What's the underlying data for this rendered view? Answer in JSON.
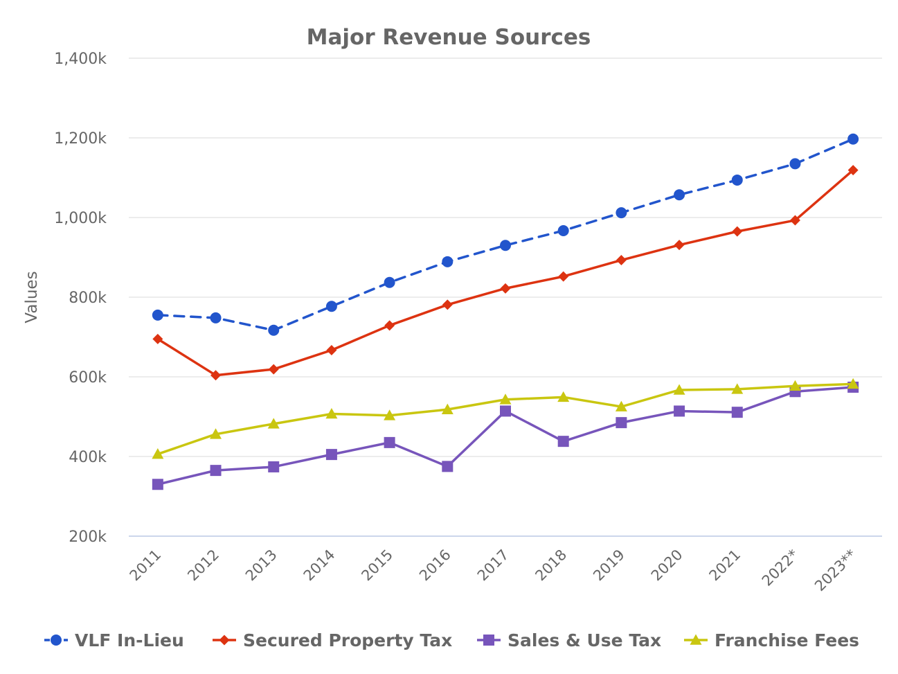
{
  "chart_data": {
    "type": "line",
    "title": "Major Revenue Sources",
    "ylabel": "Values",
    "xlabel": "",
    "categories": [
      "2011",
      "2012",
      "2013",
      "2014",
      "2015",
      "2016",
      "2017",
      "2018",
      "2019",
      "2020",
      "2021",
      "2022*",
      "2023**"
    ],
    "ylim": [
      200000,
      1400000
    ],
    "yticks": [
      200000,
      400000,
      600000,
      800000,
      1000000,
      1200000,
      1400000
    ],
    "ytick_labels": [
      "200k",
      "400k",
      "600k",
      "800k",
      "1,000k",
      "1,200k",
      "1,400k"
    ],
    "grid": true,
    "legend_position": "bottom",
    "series": [
      {
        "name": "VLF In-Lieu",
        "color": "#2255cc",
        "marker": "circle",
        "dash": "dashed",
        "values": [
          755000,
          748000,
          717000,
          777000,
          837000,
          889000,
          930000,
          967000,
          1012000,
          1057000,
          1094000,
          1135000,
          1197000
        ]
      },
      {
        "name": "Secured Property Tax",
        "color": "#dd3311",
        "marker": "diamond",
        "dash": "solid",
        "values": [
          695000,
          604000,
          619000,
          667000,
          729000,
          781000,
          822000,
          852000,
          893000,
          931000,
          965000,
          993000,
          1119000
        ]
      },
      {
        "name": "Sales & Use Tax",
        "color": "#7755bb",
        "marker": "square",
        "dash": "solid",
        "values": [
          330000,
          365000,
          374000,
          405000,
          435000,
          375000,
          514000,
          438000,
          485000,
          514000,
          511000,
          563000,
          574000
        ]
      },
      {
        "name": "Franchise Fees",
        "color": "#c9c610",
        "marker": "triangle",
        "dash": "solid",
        "values": [
          406000,
          456000,
          482000,
          507000,
          503000,
          518000,
          543000,
          549000,
          525000,
          567000,
          569000,
          577000,
          582000
        ]
      }
    ]
  }
}
